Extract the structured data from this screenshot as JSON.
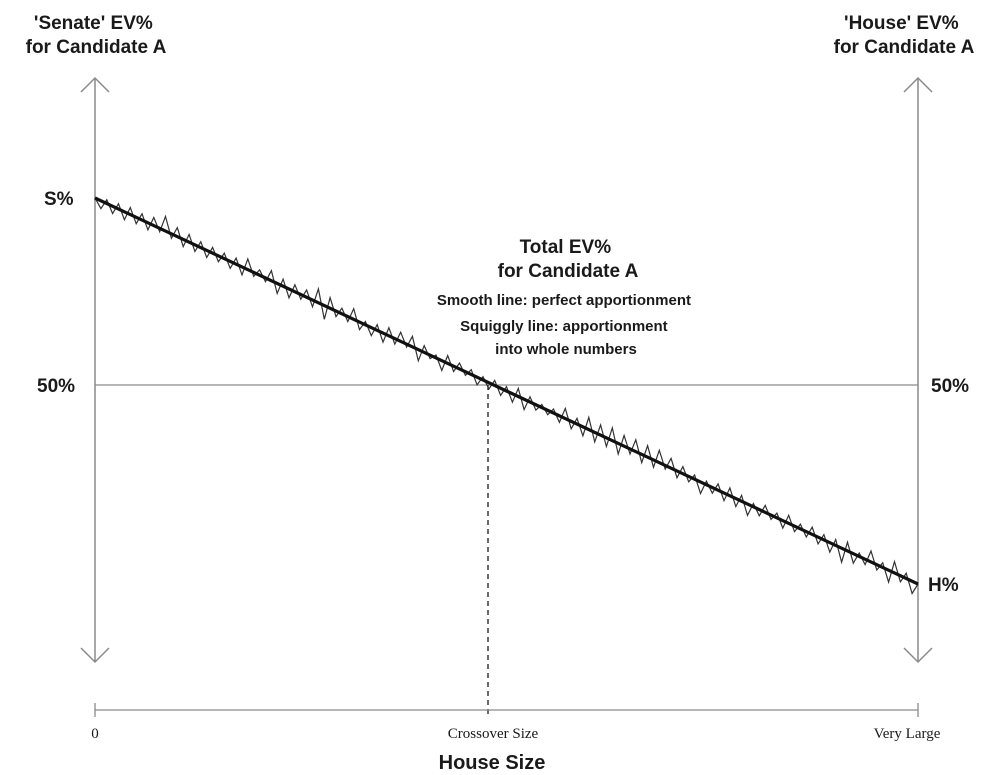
{
  "left_axis_title": [
    "'Senate' EV%",
    "for Candidate A"
  ],
  "right_axis_title": [
    "'House' EV%",
    "for Candidate A"
  ],
  "left_tick_top": "S%",
  "left_tick_mid": "50%",
  "right_tick_mid": "50%",
  "right_tick_end": "H%",
  "annotation": {
    "title": [
      "Total EV%",
      "for Candidate A"
    ],
    "notes": [
      "Smooth line: perfect apportionment",
      "Squiggly line: apportionment",
      "into whole numbers"
    ]
  },
  "x_axis": {
    "title": "House Size",
    "ticks": [
      "0",
      "Crossover Size",
      "Very Large"
    ]
  },
  "chart_data": {
    "type": "line",
    "xlabel": "House Size",
    "ylabel": "'Senate' EV% for Candidate A",
    "y2label": "'House' EV% for Candidate A",
    "x": [
      "0",
      "Crossover Size",
      "Very Large"
    ],
    "series": [
      {
        "name": "Smooth line: perfect apportionment",
        "values": [
          "S%",
          "50%",
          "H%"
        ]
      },
      {
        "name": "Squiggly line: apportionment into whole numbers",
        "values": [
          "S%",
          "50%",
          "H%"
        ]
      }
    ]
  },
  "colors": {
    "ink": "#1a1a1a",
    "guide": "#8a8a8a"
  }
}
